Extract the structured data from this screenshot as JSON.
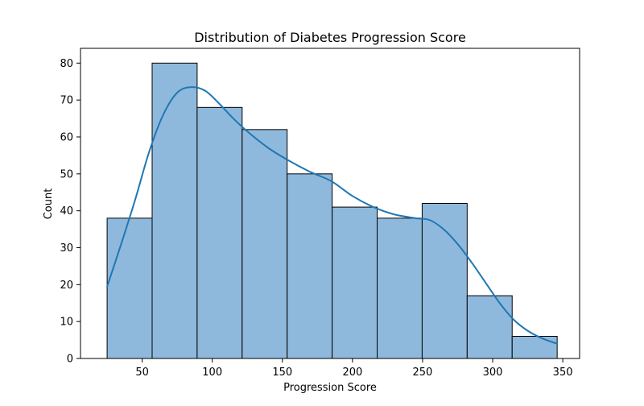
{
  "chart_data": {
    "type": "bar",
    "subtype": "histogram-with-kde",
    "title": "Distribution of Diabetes Progression Score",
    "xlabel": "Progression Score",
    "ylabel": "Count",
    "xlim": [
      6,
      362
    ],
    "ylim": [
      0,
      84
    ],
    "xticks": [
      50,
      100,
      150,
      200,
      250,
      300,
      350
    ],
    "yticks": [
      0,
      10,
      20,
      30,
      40,
      50,
      60,
      70,
      80
    ],
    "bin_edges": [
      25,
      57.1,
      89.2,
      121.3,
      153.4,
      185.5,
      217.6,
      249.7,
      281.8,
      313.9,
      346
    ],
    "counts": [
      38,
      80,
      68,
      62,
      50,
      41,
      38,
      42,
      17,
      6
    ],
    "bar_color": "#8fb9dc",
    "bar_edge_color": "#000000",
    "kde_color": "#1f77b4",
    "grid": false,
    "legend": "none",
    "kde": {
      "x": [
        25,
        35,
        45,
        55,
        65,
        75,
        85,
        95,
        105,
        115,
        125,
        140,
        155,
        170,
        185,
        200,
        215,
        230,
        245,
        255,
        265,
        275,
        285,
        295,
        305,
        315,
        325,
        335,
        346
      ],
      "y": [
        19.5,
        31,
        43,
        56,
        66,
        72,
        73.5,
        72.5,
        69,
        65,
        61.5,
        57,
        53.5,
        50.5,
        48,
        44,
        41,
        39,
        38,
        37.5,
        35,
        31,
        26,
        20.5,
        15,
        10.5,
        7.5,
        5.5,
        4
      ]
    }
  }
}
